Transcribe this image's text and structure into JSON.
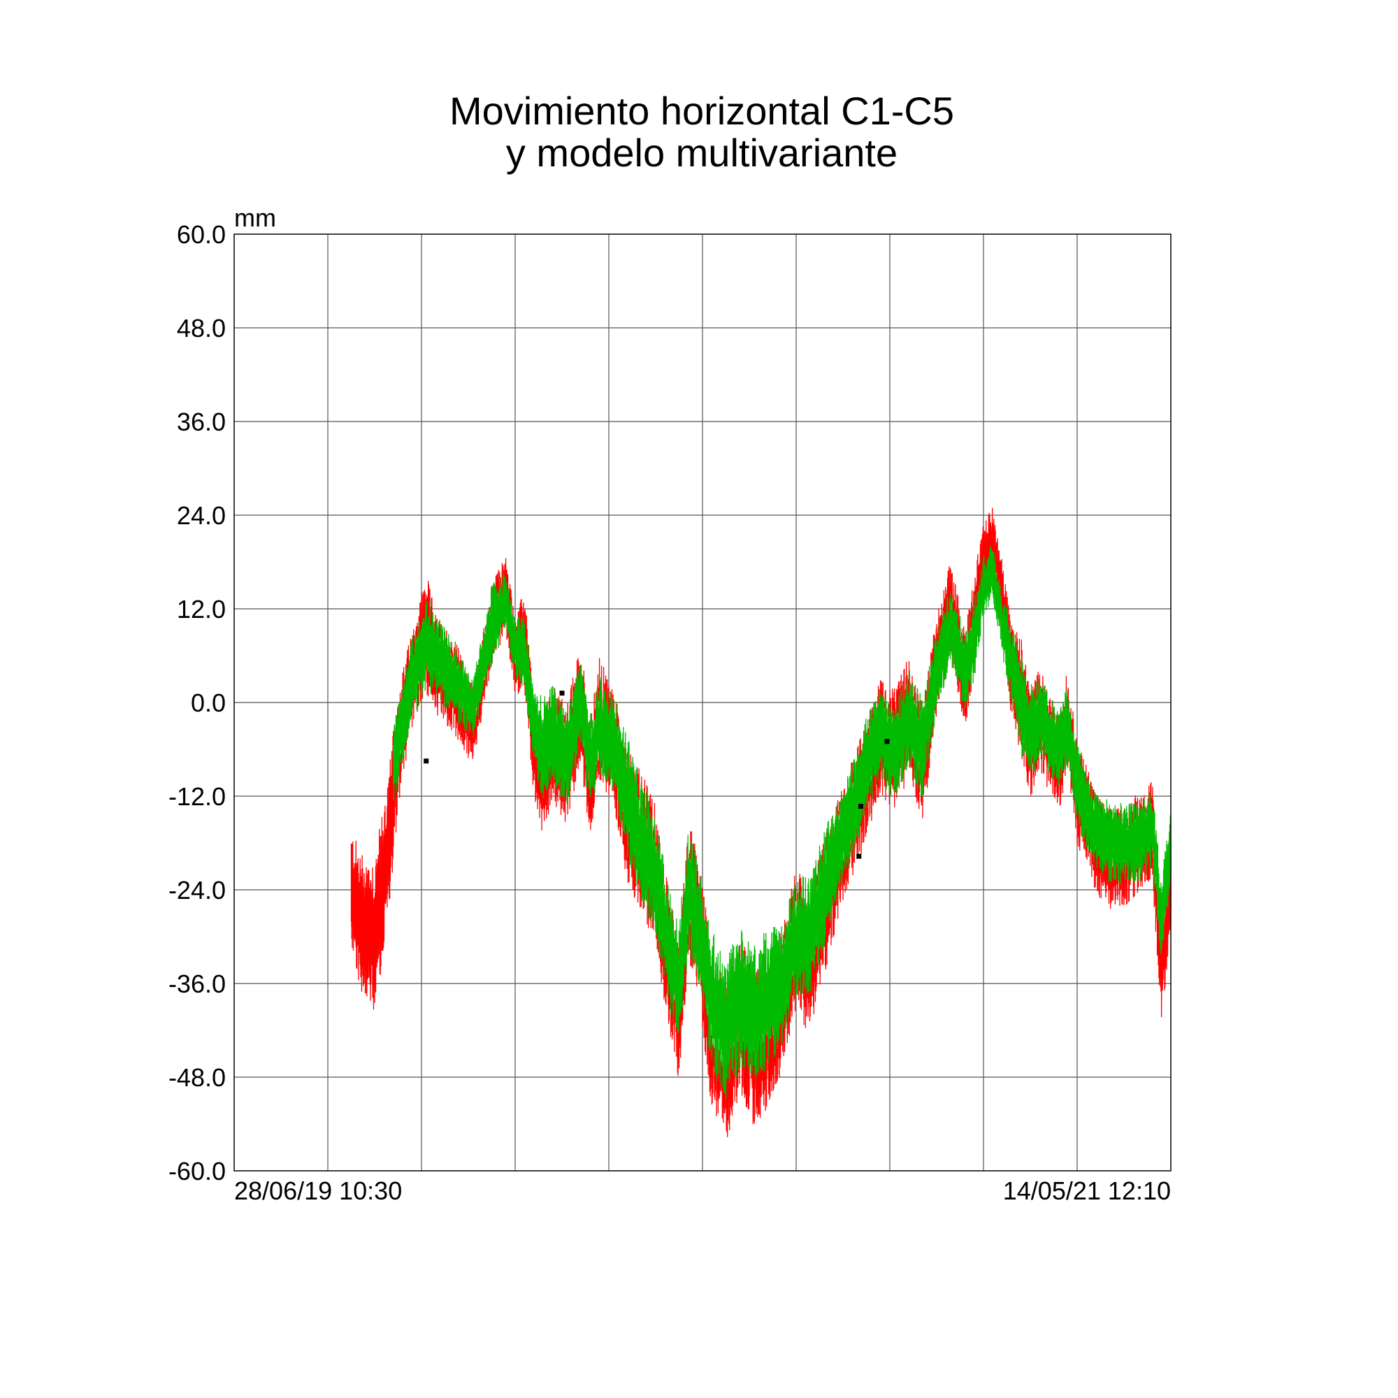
{
  "chart_data": {
    "type": "line",
    "title": [
      "Movimiento horizontal C1-C5",
      "y modelo multivariante"
    ],
    "ylabel": "mm",
    "ylim": [
      -60,
      60
    ],
    "yticks": [
      "60.0",
      "48.0",
      "36.0",
      "24.0",
      "12.0",
      "0.0",
      "-12.0",
      "-24.0",
      "-36.0",
      "-48.0",
      "-60.0"
    ],
    "xlim": [
      "28/06/19 10:30",
      "14/05/21 12:10"
    ],
    "xtick_labels": [
      "28/06/19 10:30",
      "14/05/21 12:10"
    ],
    "x_gridlines": 10,
    "y_gridlines": 10,
    "grid": true,
    "colors": {
      "measured": "#ff0000",
      "measured_light": "#ff8080",
      "model": "#00bb00",
      "model_light": "#80e080",
      "outlier": "#000000",
      "grid": "#555555"
    },
    "series": [
      {
        "key": "measured",
        "x_frac": [
          0.125,
          0.135,
          0.15,
          0.165,
          0.175,
          0.19,
          0.205,
          0.215,
          0.235,
          0.255,
          0.275,
          0.29,
          0.3,
          0.31,
          0.32,
          0.33,
          0.34,
          0.355,
          0.37,
          0.38,
          0.39,
          0.405,
          0.42,
          0.435,
          0.45,
          0.465,
          0.475,
          0.485,
          0.495,
          0.51,
          0.525,
          0.54,
          0.555,
          0.57,
          0.585,
          0.6,
          0.615,
          0.63,
          0.645,
          0.66,
          0.675,
          0.69,
          0.705,
          0.72,
          0.735,
          0.75,
          0.765,
          0.78,
          0.79,
          0.8,
          0.81,
          0.82,
          0.83,
          0.84,
          0.85,
          0.86,
          0.87,
          0.88,
          0.89,
          0.9,
          0.91,
          0.92,
          0.935,
          0.95,
          0.965,
          0.98,
          0.99,
          1.0
        ],
        "y": [
          -24,
          -28,
          -30,
          -18,
          -6,
          3,
          9,
          5,
          2,
          -3,
          10,
          14,
          6,
          8,
          -6,
          -10,
          -5,
          -8,
          0,
          -10,
          -2,
          -6,
          -14,
          -18,
          -22,
          -34,
          -40,
          -24,
          -28,
          -42,
          -46,
          -40,
          -44,
          -42,
          -38,
          -30,
          -34,
          -26,
          -20,
          -15,
          -10,
          -4,
          -6,
          -2,
          -8,
          5,
          12,
          3,
          10,
          18,
          20,
          13,
          4,
          1,
          -5,
          -2,
          -5,
          -8,
          -2,
          -12,
          -14,
          -18,
          -20,
          -20,
          -18,
          -16,
          -34,
          -24
        ],
        "amplitude": [
          6,
          7,
          8,
          7,
          6,
          5,
          6,
          5,
          5,
          4,
          4,
          4,
          4,
          5,
          5,
          6,
          6,
          6,
          6,
          6,
          6,
          6,
          7,
          7,
          7,
          7,
          7,
          7,
          7,
          8,
          8,
          8,
          8,
          8,
          7,
          7,
          7,
          7,
          6,
          6,
          6,
          6,
          6,
          6,
          6,
          5,
          5,
          5,
          5,
          4,
          4,
          4,
          5,
          6,
          6,
          5,
          5,
          5,
          5,
          5,
          5,
          5,
          5,
          5,
          5,
          5,
          5,
          5
        ]
      },
      {
        "key": "model",
        "x_frac": [
          0.17,
          0.19,
          0.205,
          0.215,
          0.235,
          0.255,
          0.275,
          0.29,
          0.3,
          0.31,
          0.32,
          0.33,
          0.34,
          0.355,
          0.37,
          0.38,
          0.39,
          0.405,
          0.42,
          0.435,
          0.45,
          0.465,
          0.475,
          0.485,
          0.495,
          0.51,
          0.525,
          0.54,
          0.555,
          0.57,
          0.585,
          0.6,
          0.615,
          0.63,
          0.645,
          0.66,
          0.675,
          0.69,
          0.705,
          0.72,
          0.735,
          0.75,
          0.765,
          0.78,
          0.79,
          0.8,
          0.81,
          0.82,
          0.83,
          0.84,
          0.85,
          0.86,
          0.87,
          0.88,
          0.89,
          0.9,
          0.91,
          0.92,
          0.935,
          0.95,
          0.965,
          0.98,
          0.99,
          1.0
        ],
        "y": [
          -8,
          3,
          8,
          6,
          3,
          -1,
          10,
          13,
          7,
          6,
          -3,
          -6,
          -4,
          -7,
          0,
          -8,
          -3,
          -5,
          -12,
          -18,
          -22,
          -32,
          -36,
          -24,
          -28,
          -38,
          -42,
          -38,
          -40,
          -38,
          -36,
          -30,
          -30,
          -24,
          -18,
          -14,
          -8,
          -4,
          -6,
          -2,
          -6,
          4,
          10,
          4,
          8,
          15,
          17,
          10,
          5,
          0,
          -4,
          -2,
          -4,
          -6,
          -3,
          -10,
          -14,
          -16,
          -18,
          -18,
          -18,
          -16,
          -28,
          -18
        ],
        "amplitude": [
          4,
          4,
          5,
          4,
          4,
          3,
          4,
          3,
          3,
          4,
          4,
          5,
          5,
          5,
          4,
          5,
          5,
          5,
          6,
          6,
          6,
          6,
          6,
          6,
          6,
          7,
          7,
          7,
          7,
          7,
          6,
          6,
          6,
          6,
          5,
          5,
          5,
          5,
          5,
          5,
          5,
          4,
          4,
          4,
          4,
          3,
          3,
          3,
          4,
          5,
          5,
          4,
          4,
          4,
          4,
          4,
          4,
          4,
          4,
          4,
          4,
          4,
          4,
          4
        ]
      }
    ],
    "outliers": [
      {
        "x_frac": 0.205,
        "y": -7.5
      },
      {
        "x_frac": 0.35,
        "y": 1.2
      },
      {
        "x_frac": 0.669,
        "y": -13.3
      },
      {
        "x_frac": 0.667,
        "y": -19.7
      },
      {
        "x_frac": 0.697,
        "y": -5
      }
    ]
  }
}
